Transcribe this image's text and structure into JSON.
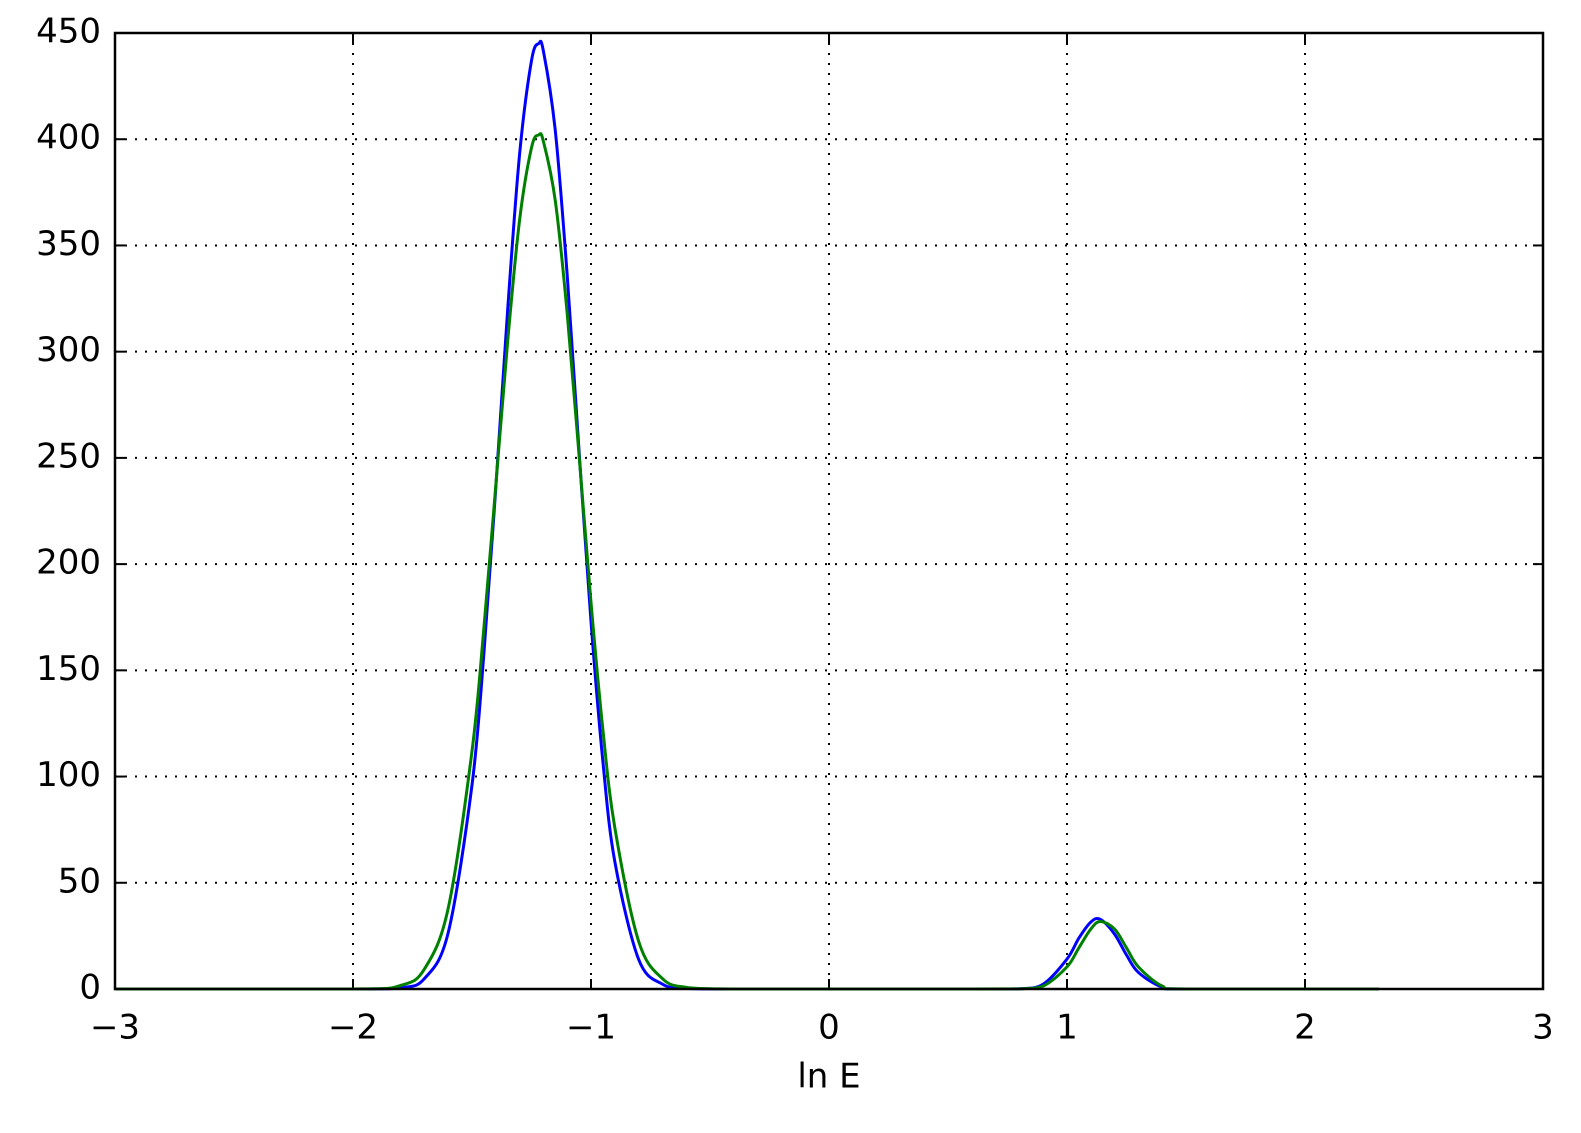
{
  "chart_data": {
    "type": "line",
    "xlabel": "ln E",
    "x": [
      -3,
      -2,
      -1.8,
      -1.7,
      -1.6,
      -1.5,
      -1.45,
      -1.4,
      -1.35,
      -1.3,
      -1.25,
      -1.22,
      -1.2,
      -1.15,
      -1.1,
      -1.05,
      -1.0,
      -0.95,
      -0.9,
      -0.8,
      -0.7,
      -0.6,
      -0.4,
      0,
      0.6,
      0.8,
      0.9,
      1.0,
      1.05,
      1.1,
      1.14,
      1.2,
      1.25,
      1.3,
      1.4,
      1.5,
      2.31
    ],
    "series": [
      {
        "color": "#0000ff",
        "values": [
          0,
          0,
          0.6,
          4.9,
          26.5,
          96,
          158,
          236,
          320,
          393,
          437,
          445,
          441.5,
          404,
          336,
          253,
          173,
          107,
          60,
          14,
          2.3,
          0.3,
          0,
          0,
          0,
          0.1,
          2.3,
          14.1,
          24,
          31.5,
          32.8,
          25.8,
          16,
          7.8,
          0.9,
          0,
          0
        ]
      },
      {
        "color": "#008000",
        "values": [
          0,
          0,
          1.7,
          9.4,
          38,
          112,
          170,
          237,
          305,
          362,
          396,
          402,
          399,
          371,
          318,
          251,
          182,
          122,
          76,
          22.5,
          4.9,
          0.8,
          0,
          0,
          0,
          0.07,
          1.4,
          10.4,
          19.4,
          28.2,
          31.8,
          28.2,
          19.4,
          10.4,
          1.4,
          0,
          0
        ]
      }
    ],
    "xlim": [
      -3,
      3
    ],
    "xticks": [
      {
        "value": -3,
        "label": "−3"
      },
      {
        "value": -2,
        "label": "−2"
      },
      {
        "value": -1,
        "label": "−1"
      },
      0,
      1,
      2,
      3
    ],
    "ylim": [
      0,
      450
    ],
    "yticks": [
      0,
      50,
      100,
      150,
      200,
      250,
      300,
      350,
      400,
      450
    ],
    "grid": true
  }
}
